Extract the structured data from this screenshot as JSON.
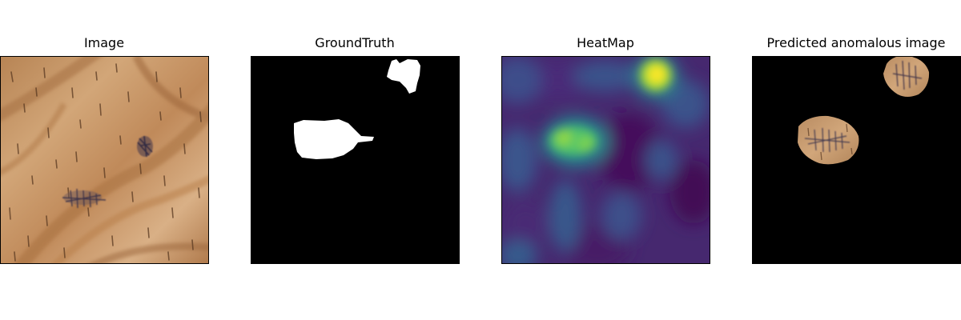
{
  "panels": [
    {
      "title": "Image",
      "content": "wood texture photograph with dark scratch marks"
    },
    {
      "title": "GroundTruth",
      "content": "binary mask: white defect regions on black"
    },
    {
      "title": "HeatMap",
      "content": "viridis colormap anomaly heatmap"
    },
    {
      "title": "Predicted anomalous image",
      "content": "wood crops of detected regions on black"
    }
  ],
  "colors": {
    "background": "#ffffff",
    "wood_light": "#c99a6a",
    "wood_dark": "#9b6a40",
    "mark": "#3a3550",
    "mask_fg": "#ffffff",
    "mask_bg": "#000000",
    "heat_low": "#440154",
    "heat_mid": "#3b528b",
    "heat_teal": "#21918c",
    "heat_green": "#5ec962",
    "heat_high": "#fde725"
  }
}
